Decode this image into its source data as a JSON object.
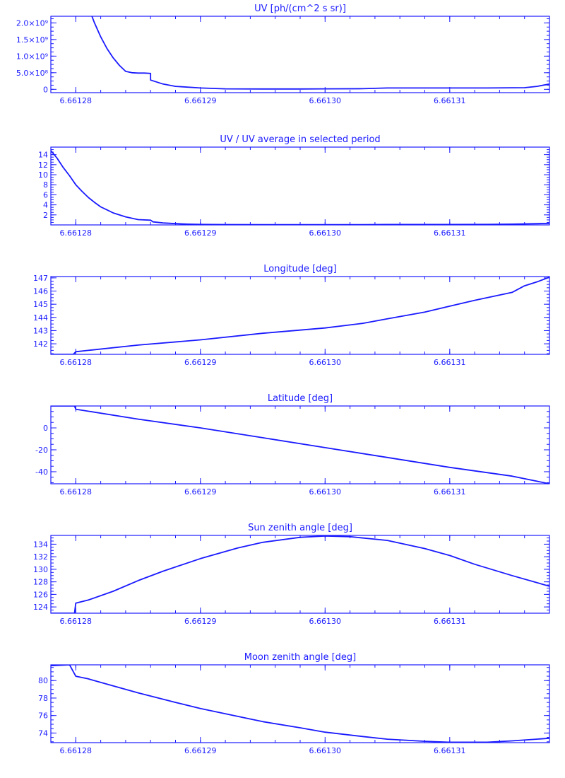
{
  "theme": {
    "color": "#1a1aff",
    "background": "#ffffff"
  },
  "chart_data": [
    {
      "type": "line",
      "title": "UV [ph/(cm^2 s sr)]",
      "xlabel": "",
      "ylabel": "",
      "xlim": [
        6.661278,
        6.661318
      ],
      "xticks": [
        6.66128,
        6.66129,
        6.6613,
        6.66131
      ],
      "xtick_labels": [
        "6.66128",
        "6.66129",
        "6.66130",
        "6.66131"
      ],
      "ylim": [
        -100000000,
        2200000000
      ],
      "yticks": [
        0,
        500000000,
        1000000000,
        1500000000,
        2000000000
      ],
      "ytick_labels": [
        "0",
        "5.0×10⁸",
        "1.0×10⁹",
        "1.5×10⁹",
        "2.0×10⁹"
      ],
      "grid": false,
      "legend": false,
      "series": [
        {
          "x": [
            6.6612813,
            6.6612815,
            6.661282,
            6.6612825,
            6.661283,
            6.6612835,
            6.661284,
            6.6612845,
            6.661285,
            6.6612855,
            6.661286,
            6.661286,
            6.661287,
            6.661288,
            6.66129,
            6.661292,
            6.661295,
            6.661298,
            6.6613,
            6.661303,
            6.661305,
            6.661308,
            6.66131,
            6.661313,
            6.661316,
            6.661317,
            6.661318
          ],
          "y": [
            2200000000,
            2000000000,
            1580000000,
            1230000000,
            950000000,
            720000000,
            540000000,
            500000000,
            490000000,
            490000000,
            480000000,
            280000000,
            160000000,
            90000000,
            40000000,
            15000000,
            10000000,
            10000000,
            15000000,
            20000000,
            40000000,
            40000000,
            40000000,
            40000000,
            50000000,
            90000000,
            160000000
          ]
        }
      ]
    },
    {
      "type": "line",
      "title": "UV / UV average in selected period",
      "xlabel": "",
      "ylabel": "",
      "xlim": [
        6.661278,
        6.661318
      ],
      "xticks": [
        6.66128,
        6.66129,
        6.6613,
        6.66131
      ],
      "xtick_labels": [
        "6.66128",
        "6.66129",
        "6.66130",
        "6.66131"
      ],
      "ylim": [
        0,
        15.5
      ],
      "yticks": [
        2,
        4,
        6,
        8,
        10,
        12,
        14
      ],
      "ytick_labels": [
        "2",
        "4",
        "6",
        "8",
        "10",
        "12",
        "14"
      ],
      "grid": false,
      "legend": false,
      "series": [
        {
          "x": [
            6.661278,
            6.6612785,
            6.661279,
            6.6612795,
            6.66128,
            6.6612805,
            6.661281,
            6.6612815,
            6.661282,
            6.6612825,
            6.661283,
            6.661284,
            6.661285,
            6.661286,
            6.6612862,
            6.661287,
            6.661288,
            6.661289,
            6.66129,
            6.661292,
            6.661295,
            6.661298,
            6.6613,
            6.661303,
            6.661305,
            6.661308,
            6.66131,
            6.661313,
            6.661315,
            6.661318
          ],
          "y": [
            14.8,
            13.3,
            11.4,
            9.8,
            8.0,
            6.7,
            5.5,
            4.5,
            3.6,
            3.0,
            2.4,
            1.6,
            1.05,
            0.95,
            0.6,
            0.4,
            0.25,
            0.15,
            0.1,
            0.07,
            0.06,
            0.05,
            0.05,
            0.06,
            0.08,
            0.08,
            0.08,
            0.1,
            0.15,
            0.3
          ]
        }
      ]
    },
    {
      "type": "line",
      "title": "Longitude [deg]",
      "xlabel": "",
      "ylabel": "",
      "xlim": [
        6.661278,
        6.661318
      ],
      "xticks": [
        6.66128,
        6.66129,
        6.6613,
        6.66131
      ],
      "xtick_labels": [
        "6.66128",
        "6.66129",
        "6.66130",
        "6.66131"
      ],
      "ylim": [
        141.2,
        147.1
      ],
      "yticks": [
        142,
        143,
        144,
        145,
        146,
        147
      ],
      "ytick_labels": [
        "142",
        "143",
        "144",
        "145",
        "146",
        "147"
      ],
      "grid": false,
      "legend": false,
      "series": [
        {
          "x": [
            6.661278,
            6.6612798,
            6.66128,
            6.661281,
            6.661285,
            6.66129,
            6.661295,
            6.6613,
            6.661303,
            6.661305,
            6.661308,
            6.66131,
            6.661312,
            6.661315,
            6.661316,
            6.661317,
            6.661318
          ],
          "y": [
            141.2,
            141.2,
            141.4,
            141.5,
            141.9,
            142.3,
            142.8,
            143.2,
            143.55,
            143.9,
            144.4,
            144.85,
            145.3,
            145.9,
            146.4,
            146.7,
            147.05
          ]
        }
      ]
    },
    {
      "type": "line",
      "title": "Latitude [deg]",
      "xlabel": "",
      "ylabel": "",
      "xlim": [
        6.661278,
        6.661318
      ],
      "xticks": [
        6.66128,
        6.66129,
        6.6613,
        6.66131
      ],
      "xtick_labels": [
        "6.66128",
        "6.66129",
        "6.66130",
        "6.66131"
      ],
      "ylim": [
        -51,
        20
      ],
      "yticks": [
        -40,
        -20,
        0
      ],
      "ytick_labels": [
        "-40",
        "-20",
        "0"
      ],
      "grid": false,
      "legend": false,
      "series": [
        {
          "x": [
            6.661278,
            6.6612799,
            6.66128,
            6.661285,
            6.66129,
            6.661295,
            6.6613,
            6.661305,
            6.66131,
            6.661315,
            6.661318
          ],
          "y": [
            20,
            20,
            17,
            8,
            0,
            -9,
            -18,
            -27,
            -36,
            -44,
            -51
          ]
        }
      ]
    },
    {
      "type": "line",
      "title": "Sun zenith angle [deg]",
      "xlabel": "",
      "ylabel": "",
      "xlim": [
        6.661278,
        6.661318
      ],
      "xticks": [
        6.66128,
        6.66129,
        6.6613,
        6.66131
      ],
      "xtick_labels": [
        "6.66128",
        "6.66129",
        "6.66130",
        "6.66131"
      ],
      "ylim": [
        123,
        135.4
      ],
      "yticks": [
        124,
        126,
        128,
        130,
        132,
        134
      ],
      "ytick_labels": [
        "124",
        "126",
        "128",
        "130",
        "132",
        "134"
      ],
      "grid": false,
      "legend": false,
      "series": [
        {
          "x": [
            6.661278,
            6.6612799,
            6.66128,
            6.661281,
            6.661283,
            6.661285,
            6.661287,
            6.66129,
            6.661293,
            6.661295,
            6.661298,
            6.6613,
            6.661302,
            6.661305,
            6.661308,
            6.66131,
            6.661312,
            6.661315,
            6.661318
          ],
          "y": [
            123,
            123,
            124.6,
            125.1,
            126.5,
            128.2,
            129.7,
            131.7,
            133.4,
            134.3,
            135.1,
            135.3,
            135.2,
            134.6,
            133.3,
            132.2,
            130.8,
            129.0,
            127.3
          ]
        }
      ]
    },
    {
      "type": "line",
      "title": "Moon zenith angle [deg]",
      "xlabel": "",
      "ylabel": "",
      "xlim": [
        6.661278,
        6.661318
      ],
      "xticks": [
        6.66128,
        6.66129,
        6.6613,
        6.66131
      ],
      "xtick_labels": [
        "6.66128",
        "6.66129",
        "6.66130",
        "6.66131"
      ],
      "ylim": [
        72.9,
        81.8
      ],
      "yticks": [
        74,
        76,
        78,
        80
      ],
      "ytick_labels": [
        "74",
        "76",
        "78",
        "80"
      ],
      "grid": false,
      "legend": false,
      "series": [
        {
          "x": [
            6.661278,
            6.6612795,
            6.66128,
            6.661281,
            6.661283,
            6.661285,
            6.661288,
            6.66129,
            6.661293,
            6.661295,
            6.661298,
            6.6613,
            6.661303,
            6.661305,
            6.661308,
            6.66131,
            6.661313,
            6.661315,
            6.661318
          ],
          "y": [
            81.7,
            81.8,
            80.5,
            80.2,
            79.4,
            78.6,
            77.5,
            76.8,
            75.9,
            75.3,
            74.6,
            74.1,
            73.6,
            73.3,
            73.05,
            72.95,
            72.95,
            73.1,
            73.4
          ]
        }
      ]
    }
  ]
}
